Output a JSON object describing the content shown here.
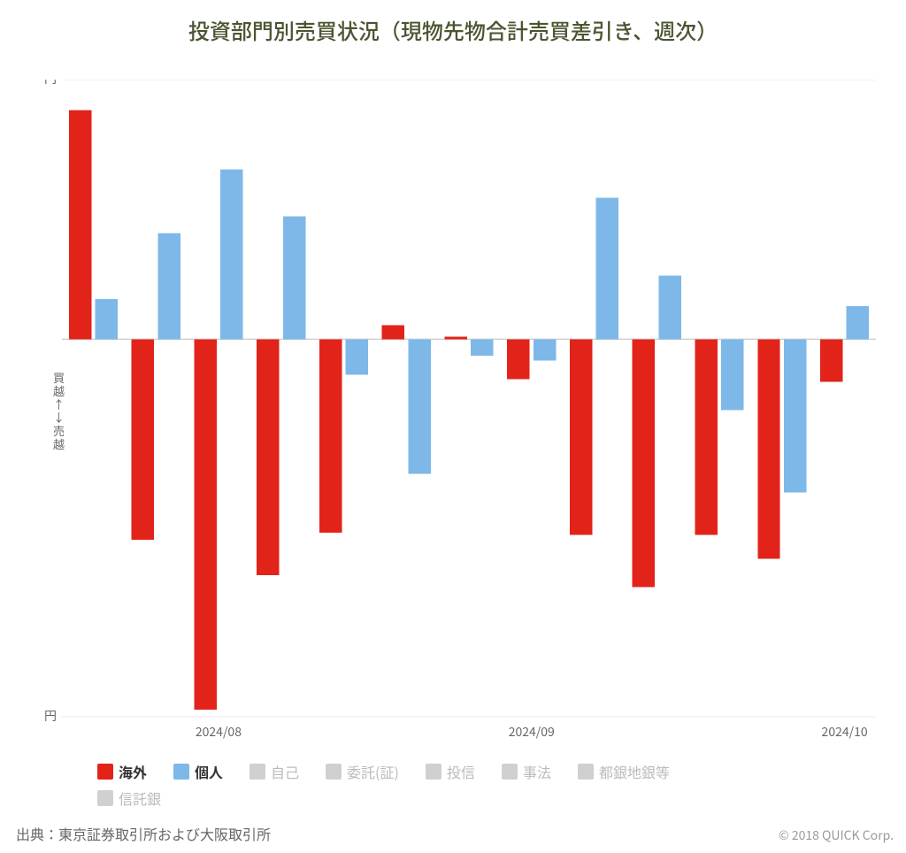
{
  "title": "投資部門別売買状況（現物先物合計売買差引き、週次）",
  "chart": {
    "type": "bar",
    "y": {
      "min": -1.6,
      "max": 1.1,
      "unit_suffix": "兆円",
      "ticks": [
        1.1,
        -1.6
      ],
      "gridlines": [
        1.1,
        0,
        -1.6
      ]
    },
    "x": {
      "ticks": [
        {
          "index": 2,
          "label": "2024/08"
        },
        {
          "index": 7,
          "label": "2024/09"
        },
        {
          "index": 12,
          "label": "2024/10"
        }
      ]
    },
    "group_count": 13,
    "series": [
      {
        "key": "overseas",
        "label": "海外",
        "color": "#e2231a",
        "active": true,
        "values": [
          0.97,
          -0.85,
          -1.57,
          -1.0,
          -0.82,
          0.06,
          0.01,
          -0.17,
          -0.83,
          -1.05,
          -0.83,
          -0.93,
          -0.18
        ]
      },
      {
        "key": "individual",
        "label": "個人",
        "color": "#7db8e8",
        "active": true,
        "values": [
          0.17,
          0.45,
          0.72,
          0.52,
          -0.15,
          -0.57,
          -0.07,
          -0.09,
          0.6,
          0.27,
          -0.3,
          -0.65,
          0.14
        ]
      },
      {
        "key": "self",
        "label": "自己",
        "color": "#bbbbbb",
        "active": false,
        "values": null
      },
      {
        "key": "consign",
        "label": "委託(証)",
        "color": "#bbbbbb",
        "active": false,
        "values": null
      },
      {
        "key": "toushin",
        "label": "投信",
        "color": "#bbbbbb",
        "active": false,
        "values": null
      },
      {
        "key": "jihou",
        "label": "事法",
        "color": "#bbbbbb",
        "active": false,
        "values": null
      },
      {
        "key": "togin",
        "label": "都銀地銀等",
        "color": "#bbbbbb",
        "active": false,
        "values": null
      },
      {
        "key": "shintaku",
        "label": "信託銀",
        "color": "#bbbbbb",
        "active": false,
        "values": null
      }
    ],
    "background_color": "#ffffff",
    "grid_color": "#e8e8e8",
    "zero_line_color": "#cfcfcf",
    "tick_font_size": 14,
    "title_font_size": 24,
    "title_color": "#4a5530",
    "inactive_text_color": "#bbbbbb",
    "bar_group_width": 0.78,
    "bar_gap": 0.06
  },
  "ylabel_lines": [
    "買",
    "越",
    "↑",
    "↓",
    "売",
    "越"
  ],
  "source": "出典：東京証券取引所および大阪取引所",
  "copyright": "© 2018 QUICK Corp."
}
